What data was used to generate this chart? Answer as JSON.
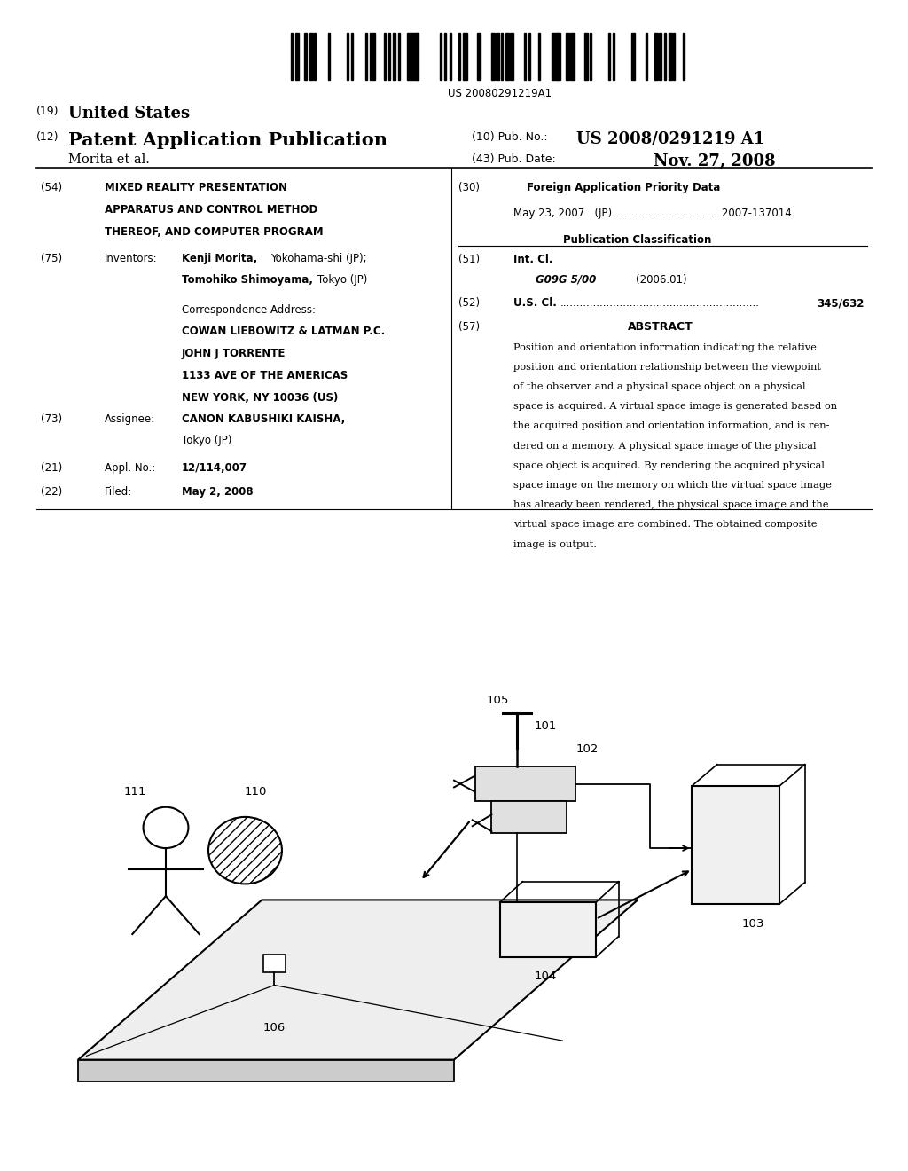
{
  "background_color": "#ffffff",
  "page_width": 10.24,
  "page_height": 13.2,
  "barcode_text": "US 20080291219A1",
  "header": {
    "country_label": "(19)",
    "country": "United States",
    "type_label": "(12)",
    "type": "Patent Application Publication",
    "pub_no_label": "(10) Pub. No.:",
    "pub_no": "US 2008/0291219 A1",
    "inventor_label": "Morita et al.",
    "pub_date_label": "(43) Pub. Date:",
    "pub_date": "Nov. 27, 2008"
  },
  "left_col": {
    "title_num": "(54)",
    "title": "MIXED REALITY PRESENTATION\nAPPARATUS AND CONTROL METHOD\nTHEREOF, AND COMPUTER PROGRAM",
    "inventors_num": "(75)",
    "inventors_label": "Inventors:",
    "inventors": "Kenji Morita, Yokohama-shi (JP);\nTomohiko Shimoyama, Tokyo (JP)",
    "assignee_num": "(73)",
    "assignee_label": "Assignee:",
    "assignee": "CANON KABUSHIKI KAISHA,\nTokyo (JP)",
    "appl_num": "(21)",
    "appl_label": "Appl. No.:",
    "appl_val": "12/114,007",
    "filed_num": "(22)",
    "filed_label": "Filed:",
    "filed_val": "May 2, 2008"
  },
  "right_col": {
    "foreign_num": "(30)",
    "foreign_label": "Foreign Application Priority Data",
    "foreign_data": "May 23, 2007   (JP) ..............................  2007-137014",
    "pub_class_label": "Publication Classification",
    "int_cl_num": "(51)",
    "int_cl_label": "Int. Cl.",
    "int_cl_val": "G09G 5/00",
    "int_cl_year": "(2006.01)",
    "us_cl_num": "(52)",
    "us_cl_label": "U.S. Cl.",
    "us_cl_val": "345/632",
    "abstract_num": "(57)",
    "abstract_label": "ABSTRACT",
    "abstract_text": "Position and orientation information indicating the relative\nposition and orientation relationship between the viewpoint\nof the observer and a physical space object on a physical\nspace is acquired. A virtual space image is generated based on\nthe acquired position and orientation information, and is ren-\ndered on a memory. A physical space image of the physical\nspace object is acquired. By rendering the acquired physical\nspace image on the memory on which the virtual space image\nhas already been rendered, the physical space image and the\nvirtual space image are combined. The obtained composite\nimage is output."
  }
}
